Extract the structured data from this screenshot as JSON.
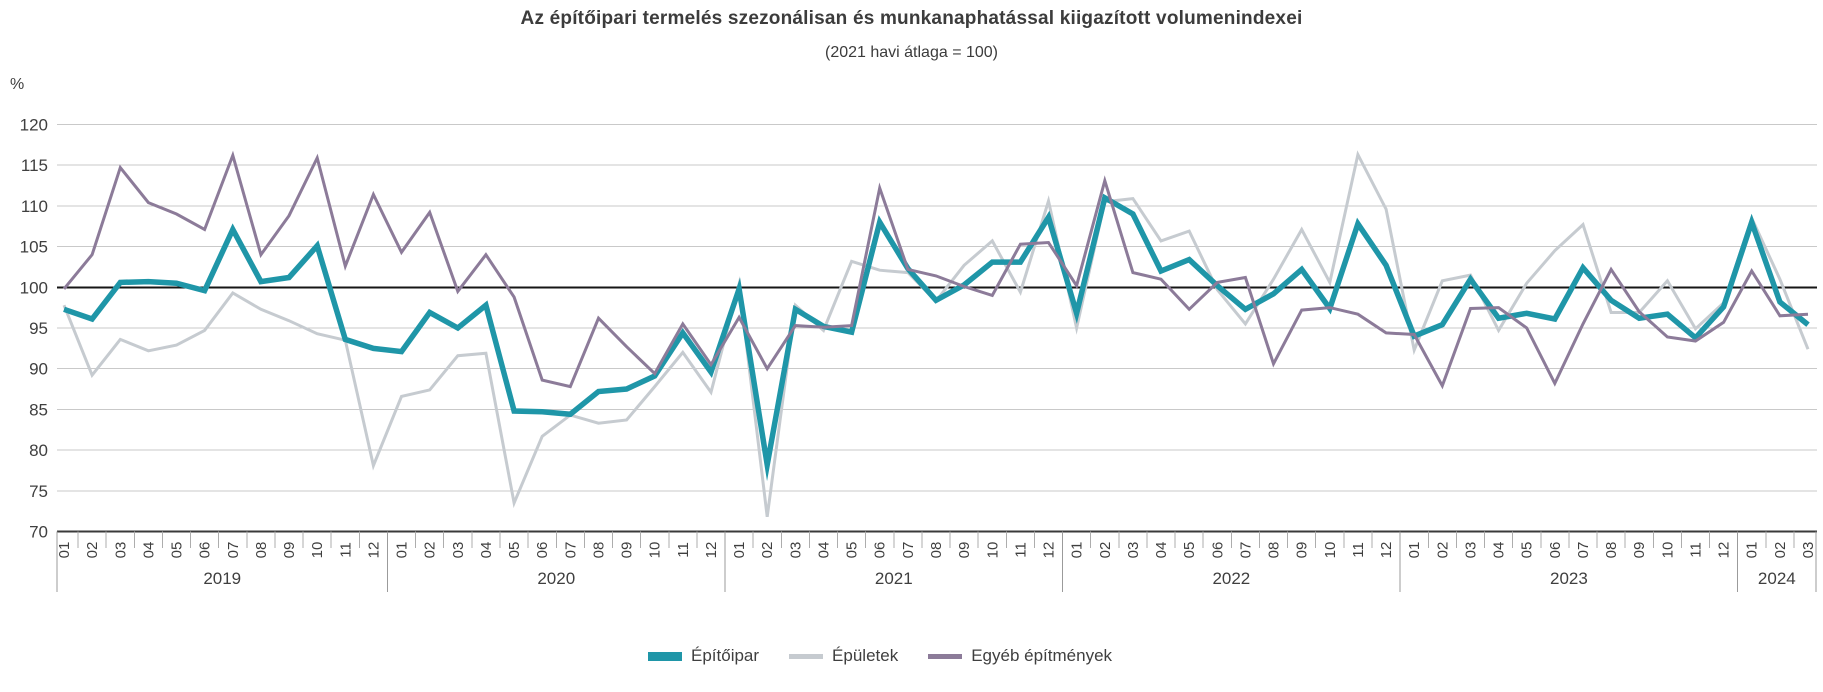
{
  "chart": {
    "title": "Az építőipari termelés szezonálisan és munkanaphatással kiigazított volumenindexei",
    "subtitle": "(2021 havi átlaga = 100)",
    "unit_label": "%"
  },
  "chart_data": {
    "type": "line",
    "title": "Az építőipari termelés szezonálisan és munkanaphatással kiigazított volumenindexei",
    "subtitle": "(2021 havi átlaga = 100)",
    "ylabel": "%",
    "xlabel": "",
    "ylim": [
      70,
      120
    ],
    "y_ticks": [
      70,
      75,
      80,
      85,
      90,
      95,
      100,
      105,
      110,
      115,
      120
    ],
    "baseline": 100,
    "grid": true,
    "legend_position": "bottom",
    "year_groups": [
      {
        "label": "2019",
        "months": 12
      },
      {
        "label": "2020",
        "months": 12
      },
      {
        "label": "2021",
        "months": 12
      },
      {
        "label": "2022",
        "months": 12
      },
      {
        "label": "2023",
        "months": 12
      },
      {
        "label": "2024",
        "months": 3
      }
    ],
    "categories": [
      "01",
      "02",
      "03",
      "04",
      "05",
      "06",
      "07",
      "08",
      "09",
      "10",
      "11",
      "12",
      "01",
      "02",
      "03",
      "04",
      "05",
      "06",
      "07",
      "08",
      "09",
      "10",
      "11",
      "12",
      "01",
      "02",
      "03",
      "04",
      "05",
      "06",
      "07",
      "08",
      "09",
      "10",
      "11",
      "12",
      "01",
      "02",
      "03",
      "04",
      "05",
      "06",
      "07",
      "08",
      "09",
      "10",
      "11",
      "12",
      "01",
      "02",
      "03",
      "04",
      "05",
      "06",
      "07",
      "08",
      "09",
      "10",
      "11",
      "12",
      "01",
      "02",
      "03"
    ],
    "series": [
      {
        "name": "Építőipar",
        "color": "#1F96A8",
        "stroke_width": 5.5,
        "values": [
          97.3,
          96.1,
          100.6,
          100.7,
          100.5,
          99.6,
          107.1,
          100.7,
          101.2,
          105.1,
          93.6,
          92.5,
          92.1,
          96.9,
          95.0,
          97.8,
          84.8,
          84.7,
          84.4,
          87.2,
          87.5,
          89.1,
          94.4,
          89.6,
          99.8,
          78.2,
          97.3,
          95.2,
          94.5,
          108.0,
          102.3,
          98.4,
          100.3,
          103.1,
          103.1,
          108.6,
          96.8,
          111.0,
          109.0,
          102.0,
          103.4,
          100.2,
          97.3,
          99.2,
          102.2,
          97.4,
          107.8,
          102.7,
          94.0,
          95.4,
          101.0,
          96.2,
          96.8,
          96.1,
          102.4,
          98.4,
          96.2,
          96.7,
          93.8,
          97.6,
          108.0,
          98.2,
          95.4
        ]
      },
      {
        "name": "Épületek",
        "color": "#C6CBD0",
        "stroke_width": 3,
        "values": [
          97.8,
          89.2,
          93.6,
          92.2,
          92.9,
          94.7,
          99.3,
          97.3,
          95.9,
          94.3,
          93.5,
          78.1,
          86.6,
          87.4,
          91.6,
          91.9,
          73.5,
          81.7,
          84.3,
          83.3,
          83.7,
          87.8,
          92.0,
          87.1,
          100.4,
          71.8,
          97.8,
          94.7,
          103.2,
          102.1,
          101.8,
          98.3,
          102.7,
          105.7,
          99.4,
          110.6,
          95.0,
          110.5,
          110.9,
          105.7,
          106.9,
          99.7,
          95.5,
          101.0,
          107.1,
          100.6,
          116.3,
          109.6,
          92.3,
          100.8,
          101.5,
          94.7,
          100.5,
          104.5,
          107.7,
          96.9,
          96.9,
          100.8,
          94.9,
          98.1,
          108.5,
          101.0,
          92.4
        ]
      },
      {
        "name": "Egyéb építmények",
        "color": "#8C7B99",
        "stroke_width": 3,
        "values": [
          99.8,
          104.0,
          114.7,
          110.4,
          109.0,
          107.1,
          116.2,
          104.0,
          108.8,
          115.9,
          102.6,
          111.4,
          104.3,
          109.2,
          99.5,
          104.0,
          98.8,
          88.6,
          87.8,
          96.2,
          92.7,
          89.4,
          95.5,
          90.5,
          96.3,
          90.0,
          95.3,
          95.1,
          95.3,
          112.2,
          102.2,
          101.4,
          100.1,
          99.0,
          105.3,
          105.5,
          100.2,
          113.1,
          101.8,
          101.0,
          97.3,
          100.6,
          101.2,
          90.6,
          97.2,
          97.5,
          96.7,
          94.4,
          94.2,
          87.9,
          97.4,
          97.5,
          95.0,
          88.2,
          95.5,
          102.2,
          97.0,
          93.9,
          93.4,
          95.7,
          102.0,
          96.5,
          96.7
        ]
      }
    ],
    "style": {
      "grid_color": "#C9C9C9",
      "baseline_color": "#161616",
      "axis_color": "#3A3A3A",
      "month_tick_color": "#ADADAD",
      "year_line_color": "#9B9B9B",
      "text_color": "#3F3F3F"
    }
  }
}
